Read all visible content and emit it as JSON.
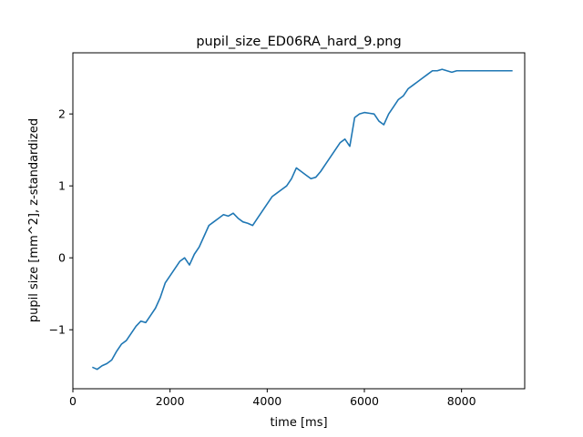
{
  "chart_data": {
    "type": "line",
    "title": "pupil_size_ED06RA_hard_9.png",
    "xlabel": "time [ms]",
    "ylabel": "pupil size [mm^2], z-standardized",
    "xlim": [
      0,
      9300
    ],
    "ylim": [
      -1.82,
      2.85
    ],
    "xticks": [
      0,
      2000,
      4000,
      6000,
      8000
    ],
    "xtick_labels": [
      "0",
      "2000",
      "4000",
      "6000",
      "8000"
    ],
    "yticks": [
      -1,
      0,
      1,
      2
    ],
    "ytick_labels": [
      "−1",
      "0",
      "1",
      "2"
    ],
    "grid": false,
    "series": [
      {
        "color": "#1f77b4",
        "x": [
          400,
          500,
          600,
          700,
          800,
          900,
          1000,
          1100,
          1200,
          1300,
          1400,
          1500,
          1600,
          1700,
          1800,
          1900,
          2000,
          2100,
          2200,
          2300,
          2400,
          2500,
          2600,
          2700,
          2800,
          2900,
          3000,
          3100,
          3200,
          3300,
          3400,
          3500,
          3600,
          3700,
          3800,
          3900,
          4000,
          4100,
          4200,
          4300,
          4400,
          4500,
          4600,
          4700,
          4800,
          4900,
          5000,
          5100,
          5200,
          5300,
          5400,
          5500,
          5600,
          5700,
          5800,
          5900,
          6000,
          6100,
          6200,
          6300,
          6400,
          6500,
          6600,
          6700,
          6800,
          6900,
          7000,
          7100,
          7200,
          7300,
          7400,
          7500,
          7600,
          7700,
          7800,
          7900,
          8000,
          8100,
          8200,
          8300,
          8400,
          8500,
          8600,
          8700,
          8800,
          8900,
          9050
        ],
        "y": [
          -1.52,
          -1.55,
          -1.5,
          -1.47,
          -1.42,
          -1.3,
          -1.2,
          -1.15,
          -1.05,
          -0.95,
          -0.88,
          -0.9,
          -0.8,
          -0.7,
          -0.55,
          -0.35,
          -0.25,
          -0.15,
          -0.05,
          0.0,
          -0.1,
          0.05,
          0.15,
          0.3,
          0.45,
          0.5,
          0.55,
          0.6,
          0.58,
          0.62,
          0.55,
          0.5,
          0.48,
          0.45,
          0.55,
          0.65,
          0.75,
          0.85,
          0.9,
          0.95,
          1.0,
          1.1,
          1.25,
          1.2,
          1.15,
          1.1,
          1.12,
          1.2,
          1.3,
          1.4,
          1.5,
          1.6,
          1.65,
          1.55,
          1.95,
          2.0,
          2.02,
          2.01,
          2.0,
          1.9,
          1.85,
          2.0,
          2.1,
          2.2,
          2.25,
          2.35,
          2.4,
          2.45,
          2.5,
          2.55,
          2.6,
          2.6,
          2.62,
          2.6,
          2.58,
          2.6,
          2.6,
          2.6,
          2.6,
          2.6,
          2.6,
          2.6,
          2.6,
          2.6,
          2.6,
          2.6,
          2.6
        ]
      }
    ]
  }
}
